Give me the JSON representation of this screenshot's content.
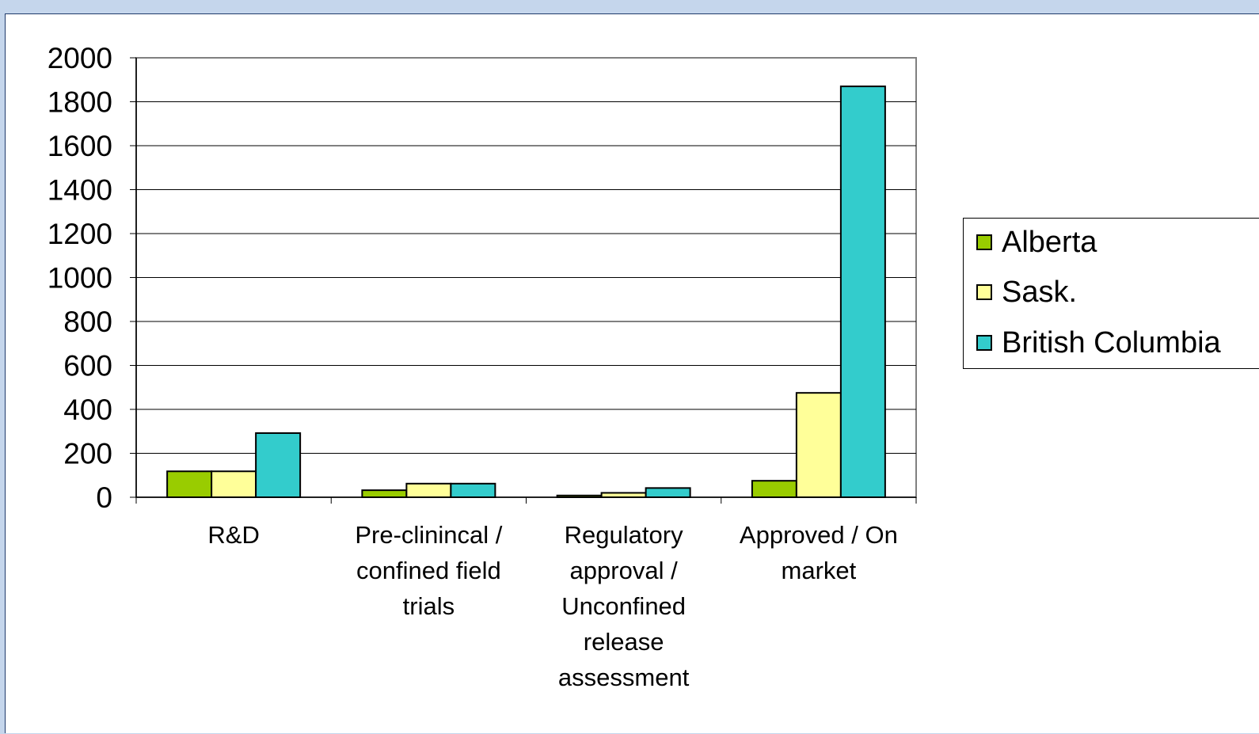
{
  "chart_data": {
    "type": "bar",
    "title": "",
    "xlabel": "",
    "ylabel": "",
    "ylim": [
      0,
      2000
    ],
    "yticks": [
      "0",
      "200",
      "400",
      "600",
      "800",
      "1000",
      "1200",
      "1400",
      "1600",
      "1800",
      "2000"
    ],
    "categories": [
      [
        "R&D"
      ],
      [
        "Pre-clinincal /",
        "confined field",
        "trials"
      ],
      [
        "Regulatory",
        "approval /",
        "Unconfined",
        "release",
        "assessment"
      ],
      [
        "Approved / On",
        "market"
      ]
    ],
    "series": [
      {
        "name": "Alberta",
        "color": "#99cc00",
        "values": [
          118,
          32,
          8,
          75
        ]
      },
      {
        "name": "Sask.",
        "color": "#ffff99",
        "values": [
          118,
          62,
          20,
          475
        ]
      },
      {
        "name": "British Columbia",
        "color": "#33cccc",
        "values": [
          292,
          62,
          42,
          1870
        ]
      }
    ],
    "grid": true,
    "legend_position": "right"
  }
}
